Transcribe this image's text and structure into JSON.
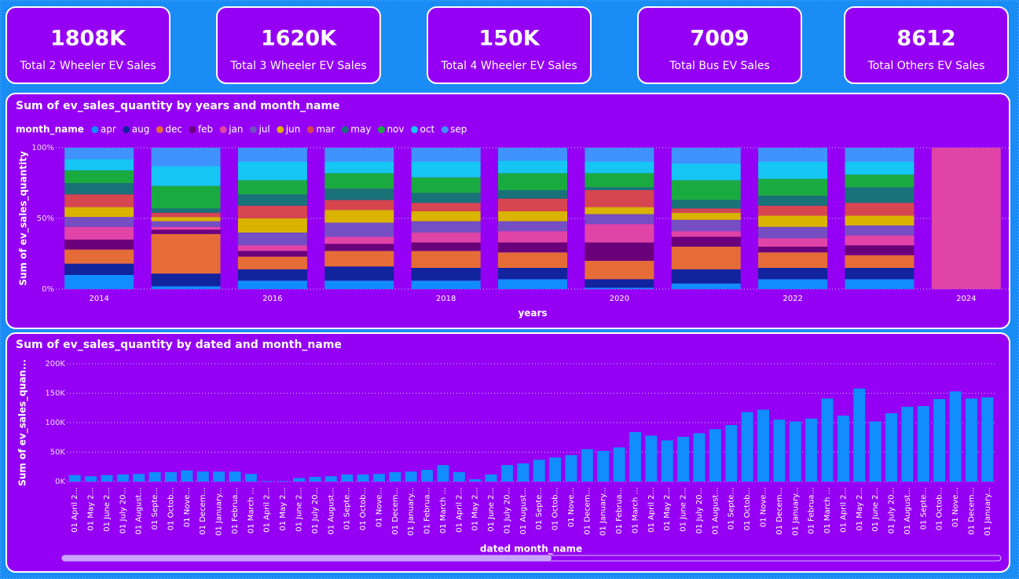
{
  "cards": [
    {
      "value": "1808K",
      "label": "Total 2 Wheeler EV Sales"
    },
    {
      "value": "1620K",
      "label": "Total 3 Wheeler EV Sales"
    },
    {
      "value": "150K",
      "label": "Total 4 Wheeler EV Sales"
    },
    {
      "value": "7009",
      "label": "Total Bus EV Sales"
    },
    {
      "value": "8612",
      "label": "Total Others EV Sales"
    }
  ],
  "chart_data": [
    {
      "type": "stacked_bar_100",
      "title": "Sum of ev_sales_quantity by years and month_name",
      "x_label": "years",
      "y_label": "Sum of ev_sales_quantity",
      "legend_title": "month_name",
      "categories": [
        "2014",
        null,
        "2016",
        null,
        "2018",
        null,
        "2020",
        null,
        "2022",
        null,
        "2024"
      ],
      "ylim": [
        0,
        100
      ],
      "yticks": [
        {
          "value": 0,
          "label": "0%"
        },
        {
          "value": 50,
          "label": "50%"
        },
        {
          "value": 100,
          "label": "100%"
        }
      ],
      "grid": true,
      "series": [
        {
          "name": "apr",
          "color": "#118dff",
          "values": [
            10,
            2,
            6,
            6,
            6,
            7,
            1,
            4,
            7,
            7,
            0
          ]
        },
        {
          "name": "aug",
          "color": "#12239e",
          "values": [
            8,
            9,
            8,
            10,
            9,
            8,
            6,
            10,
            8,
            8,
            0
          ]
        },
        {
          "name": "dec",
          "color": "#e66c37",
          "values": [
            10,
            28,
            9,
            11,
            12,
            11,
            13,
            16,
            11,
            9,
            0
          ]
        },
        {
          "name": "feb",
          "color": "#6b007b",
          "values": [
            7,
            3,
            4,
            5,
            6,
            7,
            13,
            7,
            4,
            7,
            0
          ]
        },
        {
          "name": "jan",
          "color": "#e044a7",
          "values": [
            9,
            2,
            4,
            5,
            7,
            8,
            13,
            4,
            6,
            7,
            100
          ]
        },
        {
          "name": "jul",
          "color": "#744ec2",
          "values": [
            7,
            4,
            9,
            10,
            8,
            7,
            7,
            8,
            8,
            7,
            0
          ]
        },
        {
          "name": "jun",
          "color": "#d9b300",
          "values": [
            7,
            3,
            10,
            9,
            7,
            7,
            5,
            5,
            8,
            7,
            0
          ]
        },
        {
          "name": "mar",
          "color": "#d64550",
          "values": [
            9,
            3,
            9,
            7,
            6,
            9,
            12,
            3,
            7,
            9,
            0
          ]
        },
        {
          "name": "may",
          "color": "#197278",
          "values": [
            8,
            3,
            8,
            8,
            7,
            6,
            2,
            6,
            7,
            11,
            0
          ]
        },
        {
          "name": "nov",
          "color": "#1aab40",
          "values": [
            9,
            16,
            10,
            11,
            11,
            12,
            10,
            14,
            12,
            9,
            0
          ]
        },
        {
          "name": "oct",
          "color": "#15c6f4",
          "values": [
            8,
            14,
            13,
            8,
            11,
            9,
            8,
            12,
            12,
            9,
            0
          ]
        },
        {
          "name": "sep",
          "color": "#4092ff",
          "values": [
            8,
            13,
            10,
            10,
            10,
            9,
            10,
            11,
            10,
            10,
            0
          ]
        }
      ]
    },
    {
      "type": "bar",
      "title": "Sum of ev_sales_quantity by dated and month_name",
      "x_label": "dated month_name",
      "y_label": "Sum of ev_sales_quan...",
      "color": "#118dff",
      "grid": true,
      "ylim": [
        0,
        200000
      ],
      "yticks": [
        {
          "value": 0,
          "label": "0K"
        },
        {
          "value": 50000,
          "label": "50K"
        },
        {
          "value": 100000,
          "label": "100K"
        },
        {
          "value": 150000,
          "label": "150K"
        },
        {
          "value": 200000,
          "label": "200K"
        }
      ],
      "categories": [
        "01 April 2...",
        "01 May 2...",
        "01 June 2...",
        "01 July 20...",
        "01 August...",
        "01 Septe...",
        "01 Octob...",
        "01 Nove...",
        "01 Decem...",
        "01 January...",
        "01 Februa...",
        "01 March ...",
        "01 April 2...",
        "01 May 2...",
        "01 June 2...",
        "01 July 20...",
        "01 August...",
        "01 Septe...",
        "01 Octob...",
        "01 Nove...",
        "01 Decem...",
        "01 January...",
        "01 Februa...",
        "01 March ...",
        "01 April 2...",
        "01 May 2...",
        "01 June 2...",
        "01 July 20...",
        "01 August...",
        "01 Septe...",
        "01 Octob...",
        "01 Nove...",
        "01 Decem...",
        "01 January...",
        "01 Februa...",
        "01 March ...",
        "01 April 2...",
        "01 May 2...",
        "01 June 2...",
        "01 July 20...",
        "01 August...",
        "01 Septe...",
        "01 Octob...",
        "01 Nove...",
        "01 Decem...",
        "01 January...",
        "01 Februa...",
        "01 March ...",
        "01 April 2...",
        "01 May 2...",
        "01 June 2...",
        "01 July 20...",
        "01 August...",
        "01 Septe...",
        "01 Octob...",
        "01 Nove...",
        "01 Decem...",
        "01 January..."
      ],
      "values": [
        11000,
        9000,
        11000,
        12000,
        13000,
        16000,
        16000,
        19000,
        17000,
        17000,
        17000,
        13000,
        1000,
        1000,
        6000,
        8000,
        9000,
        12000,
        12000,
        13000,
        16000,
        17000,
        20000,
        28000,
        16000,
        4000,
        12000,
        28000,
        31000,
        37000,
        41000,
        45000,
        55000,
        52000,
        58000,
        84000,
        78000,
        70000,
        76000,
        82000,
        89000,
        96000,
        118000,
        122000,
        105000,
        102000,
        107000,
        141000,
        112000,
        158000,
        102000,
        116000,
        127000,
        128000,
        140000,
        153000,
        141000,
        143000
      ]
    }
  ]
}
